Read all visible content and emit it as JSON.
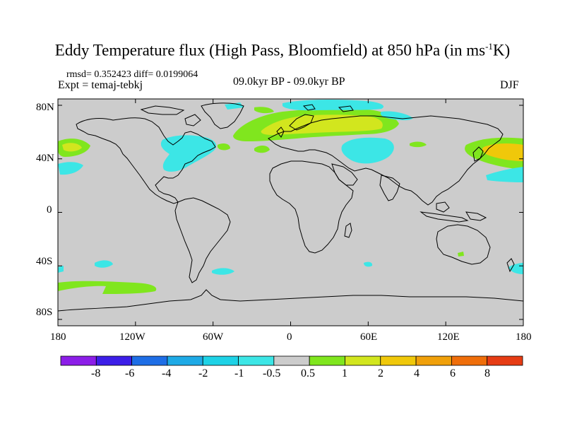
{
  "title": {
    "main": "Eddy Temperature flux (High Pass, Bloomfield) at 850 hPa (in ms",
    "sup": "-1",
    "end": "K)"
  },
  "stats": "rmsd= 0.352423 diff= 0.0199064",
  "experiment": "Expt = temaj-tebkj",
  "period": "09.0kyr BP - 09.0kyr BP",
  "season": "DJF",
  "lat_labels": [
    "80N",
    "40N",
    "0",
    "40S",
    "80S"
  ],
  "lon_labels": [
    "180",
    "120W",
    "60W",
    "0",
    "60E",
    "120E",
    "180"
  ],
  "colorbar": {
    "labels": [
      "-8",
      "-6",
      "-4",
      "-2",
      "-1",
      "-0.5",
      "0.5",
      "1",
      "2",
      "4",
      "6",
      "8"
    ],
    "colors": [
      "#8c1ee8",
      "#3c1ee8",
      "#1e6ee6",
      "#1eaae6",
      "#1ed2e6",
      "#3ce6e6",
      "#cccccc",
      "#80e61e",
      "#d2e61e",
      "#f0c80a",
      "#f0a00a",
      "#ef6e0a",
      "#e63c14"
    ]
  },
  "colors": {
    "land_bg": "#cccccc",
    "coast": "#000000",
    "cyan": "#3ce6e6",
    "green": "#80e61e",
    "yellow": "#d2e61e",
    "orange": "#f0c80a"
  }
}
